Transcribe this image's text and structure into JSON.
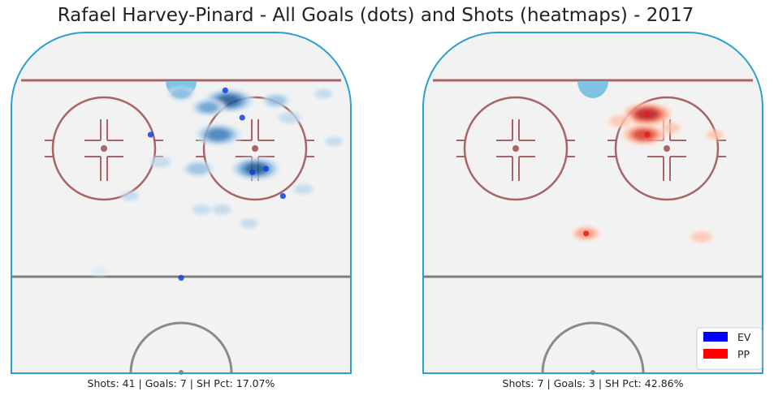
{
  "chart_data": {
    "type": "scatter",
    "title": "Rafael Harvey-Pinard - All Goals (dots) and Shots (heatmaps) - 2017",
    "legend": {
      "placement": "bottom-right",
      "entries": [
        {
          "label": "EV",
          "color": "#0000ff"
        },
        {
          "label": "PP",
          "color": "#ff0000"
        }
      ]
    },
    "panels": [
      {
        "id": "ev",
        "caption": "Shots: 41 | Goals: 7 | SH Pct: 17.07%",
        "cmap": "blue",
        "goal_color": "#1040e0",
        "goals": [
          {
            "x": 63,
            "y": 83
          },
          {
            "x": 68,
            "y": 75
          },
          {
            "x": 75,
            "y": 60
          },
          {
            "x": 71,
            "y": 59
          },
          {
            "x": 80,
            "y": 52
          },
          {
            "x": 41,
            "y": 70
          },
          {
            "x": 50,
            "y": 28
          }
        ],
        "shot_density": [
          {
            "x": 64,
            "y": 80,
            "w": 1.0
          },
          {
            "x": 61,
            "y": 70,
            "w": 0.9
          },
          {
            "x": 72,
            "y": 60,
            "w": 0.95
          },
          {
            "x": 58,
            "y": 78,
            "w": 0.6
          },
          {
            "x": 55,
            "y": 60,
            "w": 0.55
          },
          {
            "x": 50,
            "y": 82,
            "w": 0.45
          },
          {
            "x": 78,
            "y": 80,
            "w": 0.45
          },
          {
            "x": 82,
            "y": 75,
            "w": 0.4
          },
          {
            "x": 44,
            "y": 62,
            "w": 0.35
          },
          {
            "x": 56,
            "y": 48,
            "w": 0.3
          },
          {
            "x": 62,
            "y": 48,
            "w": 0.3
          },
          {
            "x": 35,
            "y": 52,
            "w": 0.25
          },
          {
            "x": 70,
            "y": 44,
            "w": 0.25
          },
          {
            "x": 86,
            "y": 54,
            "w": 0.3
          },
          {
            "x": 95,
            "y": 68,
            "w": 0.25
          },
          {
            "x": 92,
            "y": 82,
            "w": 0.25
          },
          {
            "x": 26,
            "y": 30,
            "w": 0.2
          }
        ]
      },
      {
        "id": "pp",
        "caption": "Shots: 7 | Goals: 3 | SH Pct: 42.86%",
        "cmap": "red",
        "goal_color": "#e41a1c",
        "goals": [
          {
            "x": 66,
            "y": 76
          },
          {
            "x": 66,
            "y": 70
          },
          {
            "x": 48,
            "y": 41
          }
        ],
        "shot_density": [
          {
            "x": 66,
            "y": 76,
            "w": 1.0
          },
          {
            "x": 65,
            "y": 70,
            "w": 0.85
          },
          {
            "x": 58,
            "y": 74,
            "w": 0.4
          },
          {
            "x": 73,
            "y": 72,
            "w": 0.3
          },
          {
            "x": 48,
            "y": 41,
            "w": 0.5
          },
          {
            "x": 82,
            "y": 40,
            "w": 0.35
          },
          {
            "x": 86,
            "y": 70,
            "w": 0.25
          }
        ]
      }
    ]
  }
}
